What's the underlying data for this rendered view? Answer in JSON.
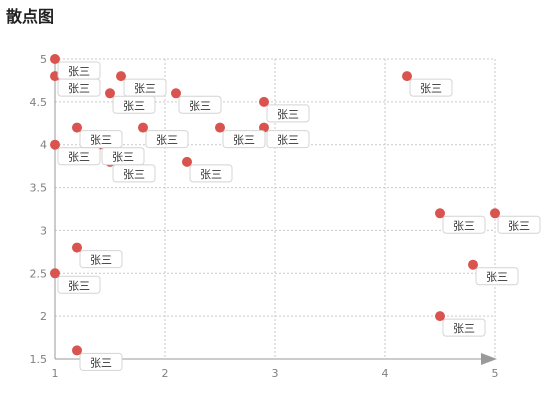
{
  "page": {
    "title": "散点图"
  },
  "chart_data": {
    "type": "scatter",
    "title": "散点图",
    "xlabel": "",
    "ylabel": "",
    "xlim": [
      1,
      5
    ],
    "ylim": [
      1.5,
      5
    ],
    "x_ticks": [
      "1",
      "2",
      "3",
      "4",
      "5"
    ],
    "y_ticks": [
      "1.5",
      "2",
      "2.5",
      "3",
      "3.5",
      "4",
      "4.5",
      "5"
    ],
    "grid": true,
    "point_color": "#d9534f",
    "series": [
      {
        "points": [
          {
            "x": 1.0,
            "y": 5.0,
            "label": "张三"
          },
          {
            "x": 1.0,
            "y": 4.8,
            "label": "张三"
          },
          {
            "x": 1.6,
            "y": 4.8,
            "label": "张三"
          },
          {
            "x": 1.5,
            "y": 4.6,
            "label": "张三"
          },
          {
            "x": 2.1,
            "y": 4.6,
            "label": "张三"
          },
          {
            "x": 2.9,
            "y": 4.5,
            "label": "张三"
          },
          {
            "x": 4.2,
            "y": 4.8,
            "label": "张三"
          },
          {
            "x": 1.2,
            "y": 4.2,
            "label": "张三"
          },
          {
            "x": 1.8,
            "y": 4.2,
            "label": "张三"
          },
          {
            "x": 2.5,
            "y": 4.2,
            "label": "张三"
          },
          {
            "x": 2.9,
            "y": 4.2,
            "label": "张三"
          },
          {
            "x": 1.0,
            "y": 4.0,
            "label": "张三"
          },
          {
            "x": 1.4,
            "y": 4.0,
            "label": "张三"
          },
          {
            "x": 1.5,
            "y": 3.8,
            "label": "张三"
          },
          {
            "x": 2.2,
            "y": 3.8,
            "label": "张三"
          },
          {
            "x": 4.5,
            "y": 3.2,
            "label": "张三"
          },
          {
            "x": 5.0,
            "y": 3.2,
            "label": "张三"
          },
          {
            "x": 1.2,
            "y": 2.8,
            "label": "张三"
          },
          {
            "x": 4.8,
            "y": 2.6,
            "label": "张三"
          },
          {
            "x": 1.0,
            "y": 2.5,
            "label": "张三"
          },
          {
            "x": 4.5,
            "y": 2.0,
            "label": "张三"
          },
          {
            "x": 1.2,
            "y": 1.6,
            "label": "张三"
          }
        ]
      }
    ]
  }
}
